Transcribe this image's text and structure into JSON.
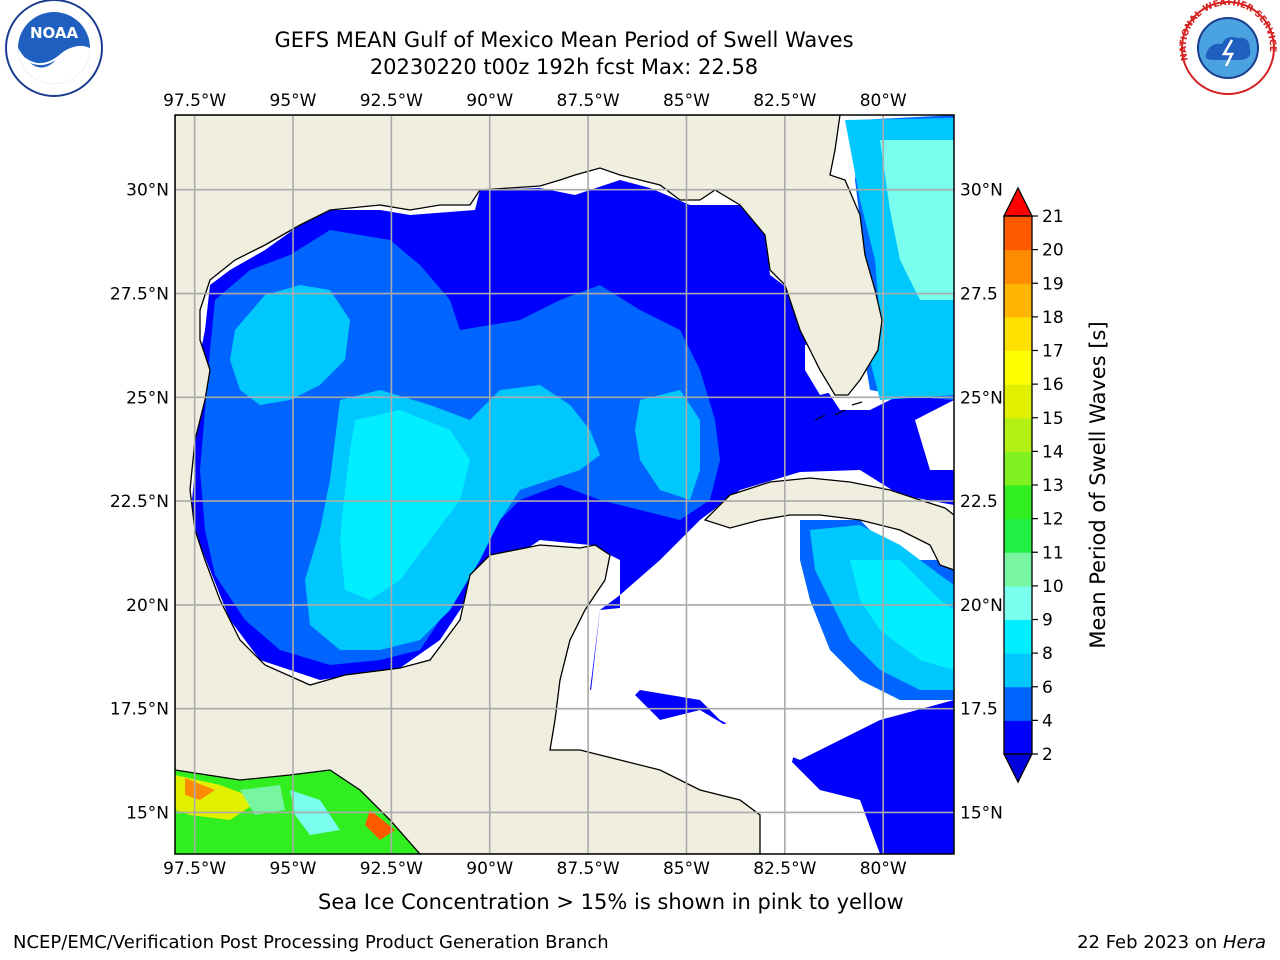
{
  "title": {
    "line1": "GEFS MEAN Gulf of Mexico Mean Period of Swell Waves",
    "line2": "20230220 t00z 192h fcst   Max: 22.58"
  },
  "logos": {
    "left_name": "noaa-logo",
    "left_text": "NOAA",
    "right_name": "nws-logo",
    "right_text": "NATIONAL WEATHER SERVICE"
  },
  "map": {
    "lon_range": [
      -98,
      -78.2
    ],
    "lat_range": [
      14,
      31.8
    ],
    "lon_tick_labels": [
      "97.5°W",
      "95°W",
      "92.5°W",
      "90°W",
      "87.5°W",
      "85°W",
      "82.5°W",
      "80°W"
    ],
    "lon_ticks": [
      -97.5,
      -95,
      -92.5,
      -90,
      -87.5,
      -85,
      -82.5,
      -80
    ],
    "lat_tick_labels_left": [
      "30°N",
      "27.5°N",
      "25°N",
      "22.5°N",
      "20°N",
      "17.5°N",
      "15°N"
    ],
    "lat_tick_labels_right": [
      "30°N",
      "27.5",
      "25°N",
      "22.5",
      "20°N",
      "17.5",
      "15°N"
    ],
    "lat_ticks": [
      30,
      27.5,
      25,
      22.5,
      20,
      17.5,
      15
    ],
    "land_color": "#efeedf",
    "gridlines": true
  },
  "colorbar": {
    "label": "Mean Period of Swell Waves [s]",
    "levels": [
      "2",
      "4",
      "6",
      "8",
      "9",
      "10",
      "11",
      "12",
      "13",
      "14",
      "15",
      "16",
      "17",
      "18",
      "19",
      "20",
      "21"
    ],
    "colors": [
      "#0000ff",
      "#0064ff",
      "#00c8ff",
      "#00eeff",
      "#7affee",
      "#78f5a0",
      "#22ee44",
      "#30ee20",
      "#80f020",
      "#b4f014",
      "#e0f000",
      "#ffff00",
      "#ffe000",
      "#ffb400",
      "#ff8c00",
      "#ff5a00",
      "#ff2800"
    ],
    "over_color": "#ff0000",
    "under_color": "#0000dd"
  },
  "note": "Sea Ice Concentration > 15% is shown in pink to yellow",
  "footer": {
    "left": "NCEP/EMC/Verification Post Processing Product Generation Branch",
    "right_prefix": "22 Feb 2023 on ",
    "right_host": "Hera"
  }
}
